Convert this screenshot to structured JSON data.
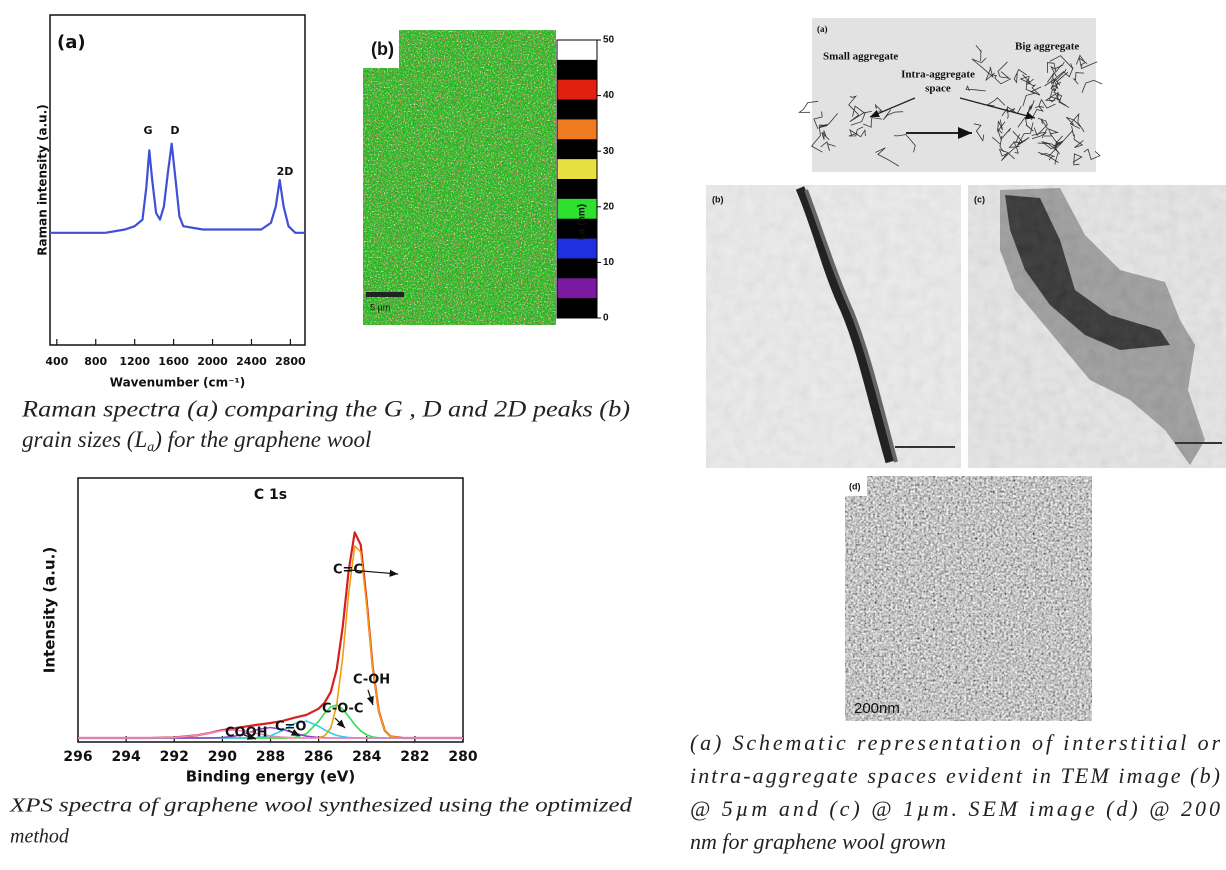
{
  "chart_data": [
    {
      "type": "line",
      "panel_label": "(a)",
      "xlabel": "Wavenumber (cm⁻¹)",
      "ylabel": "Raman intensity (a.u.)",
      "peak_labels": [
        "G",
        "D",
        "2D"
      ],
      "x": [
        330,
        600,
        900,
        1100,
        1200,
        1280,
        1320,
        1350,
        1380,
        1420,
        1460,
        1500,
        1540,
        1580,
        1620,
        1660,
        1700,
        1900,
        2200,
        2500,
        2600,
        2650,
        2690,
        2730,
        2780,
        2850,
        2950
      ],
      "series": [
        {
          "color": "#3f4fd6",
          "values": [
            34,
            34,
            34,
            35,
            36,
            38,
            48,
            59,
            50,
            40,
            38,
            42,
            52,
            61,
            50,
            39,
            36,
            35,
            35,
            35,
            37,
            42,
            50,
            42,
            36,
            34,
            34
          ]
        }
      ],
      "xlim": [
        330,
        2950
      ],
      "ylim": [
        0,
        100
      ],
      "xticks": [
        400,
        800,
        1200,
        1600,
        2000,
        2400,
        2800
      ]
    },
    {
      "type": "line",
      "title": "C 1s",
      "xlabel": "Binding energy (eV)",
      "ylabel": "Intensity (a.u.)",
      "x": [
        296,
        295,
        294,
        293,
        292,
        291,
        290.5,
        290,
        289.5,
        289,
        288.5,
        288,
        287.5,
        287,
        286.5,
        286,
        285.75,
        285.5,
        285.25,
        285,
        284.75,
        284.5,
        284.25,
        284,
        283.75,
        283.5,
        283.25,
        283,
        282.5,
        282,
        281,
        280
      ],
      "series": [
        {
          "color": "#d42020",
          "values": [
            1.5,
            1.5,
            1.5,
            1.5,
            1.7,
            2.6,
            3.5,
            4.5,
            5.2,
            5.9,
            6.6,
            7.2,
            8.0,
            9.2,
            10.3,
            12.6,
            14.9,
            18.9,
            27.5,
            43.6,
            65.0,
            79.4,
            74.7,
            52.9,
            28.2,
            11.7,
            4.3,
            2.1,
            1.5,
            1.5,
            1.5,
            1.5
          ]
        },
        {
          "name": "C=C",
          "color": "#f39c12",
          "values": [
            1.5,
            1.5,
            1.5,
            1.5,
            1.5,
            1.5,
            1.5,
            1.5,
            1.5,
            1.5,
            1.5,
            1.5,
            1.5,
            1.5,
            1.5,
            1.6,
            2.3,
            5.2,
            14.0,
            32.1,
            56.6,
            74.2,
            72.0,
            51.7,
            27.8,
            11.6,
            4.3,
            2.1,
            1.5,
            1.5,
            1.5,
            1.5
          ]
        },
        {
          "name": "C-OH",
          "color": "#33dd55",
          "values": [
            1.5,
            1.5,
            1.5,
            1.5,
            1.5,
            1.5,
            1.5,
            1.5,
            1.5,
            1.5,
            1.5,
            1.5,
            1.5,
            1.7,
            3.2,
            7.8,
            10.9,
            13.3,
            14.0,
            12.5,
            9.7,
            6.6,
            4.2,
            2.7,
            1.9,
            1.6,
            1.5,
            1.5,
            1.5,
            1.5,
            1.5,
            1.5
          ]
        },
        {
          "name": "C-O-C",
          "color": "#33ccee",
          "values": [
            1.5,
            1.5,
            1.5,
            1.5,
            1.5,
            1.5,
            1.5,
            1.5,
            1.5,
            1.5,
            1.7,
            2.4,
            4.3,
            7.0,
            7.9,
            6.0,
            4.6,
            3.4,
            2.5,
            2.0,
            1.7,
            1.6,
            1.5,
            1.5,
            1.5,
            1.5,
            1.5,
            1.5,
            1.5,
            1.5,
            1.5,
            1.5
          ]
        },
        {
          "name": "C=O",
          "color": "#9b3fd0",
          "values": [
            1.5,
            1.5,
            1.5,
            1.5,
            1.5,
            1.5,
            1.5,
            1.7,
            2.2,
            3.3,
            4.8,
            5.5,
            4.8,
            3.3,
            2.2,
            1.7,
            1.6,
            1.5,
            1.5,
            1.5,
            1.5,
            1.5,
            1.5,
            1.5,
            1.5,
            1.5,
            1.5,
            1.5,
            1.5,
            1.5,
            1.5,
            1.5
          ]
        },
        {
          "name": "COOH",
          "color": "#ee88bb",
          "values": [
            1.5,
            1.5,
            1.5,
            1.5,
            1.7,
            2.6,
            3.5,
            4.3,
            4.5,
            4.0,
            3.1,
            2.3,
            1.8,
            1.6,
            1.5,
            1.5,
            1.5,
            1.5,
            1.5,
            1.5,
            1.5,
            1.5,
            1.5,
            1.5,
            1.5,
            1.5,
            1.5,
            1.5,
            1.5,
            1.5,
            1.5,
            1.5
          ]
        }
      ],
      "xlim": [
        296,
        280
      ],
      "ylim": [
        0,
        100
      ],
      "xticks": [
        296,
        294,
        292,
        290,
        288,
        286,
        284,
        282,
        280
      ]
    }
  ],
  "raman_map": {
    "label": "(b)",
    "colorbar_label": "La (nm)",
    "colorbar_ticks": [
      0,
      10,
      20,
      30,
      40,
      50
    ],
    "scale_bar": "5 µm"
  },
  "schematic": {
    "label": "(a)",
    "small": "Small aggregate",
    "intra": [
      "Intra-aggregate",
      "space"
    ],
    "big": "Big aggregate"
  },
  "tem": [
    {
      "label": "(b)"
    },
    {
      "label": "(c)"
    }
  ],
  "sem": {
    "label": "(d)",
    "scale": "200nm"
  },
  "captions": {
    "raman": [
      "Raman spectra (a) comparing the G , D and 2D peaks (b)",
      "grain sizes (L",
      "a",
      ") for the graphene wool"
    ],
    "xps": [
      "XPS spectra of graphene wool synthesized using the optimized",
      "method"
    ],
    "microscopy": [
      "(a) Schematic representation of interstitial or",
      "intra-aggregate spaces evident in TEM image (b)",
      "@ 5µm and (c) @ 1µm. SEM image (d) @ 200",
      "nm for graphene wool grown"
    ]
  }
}
